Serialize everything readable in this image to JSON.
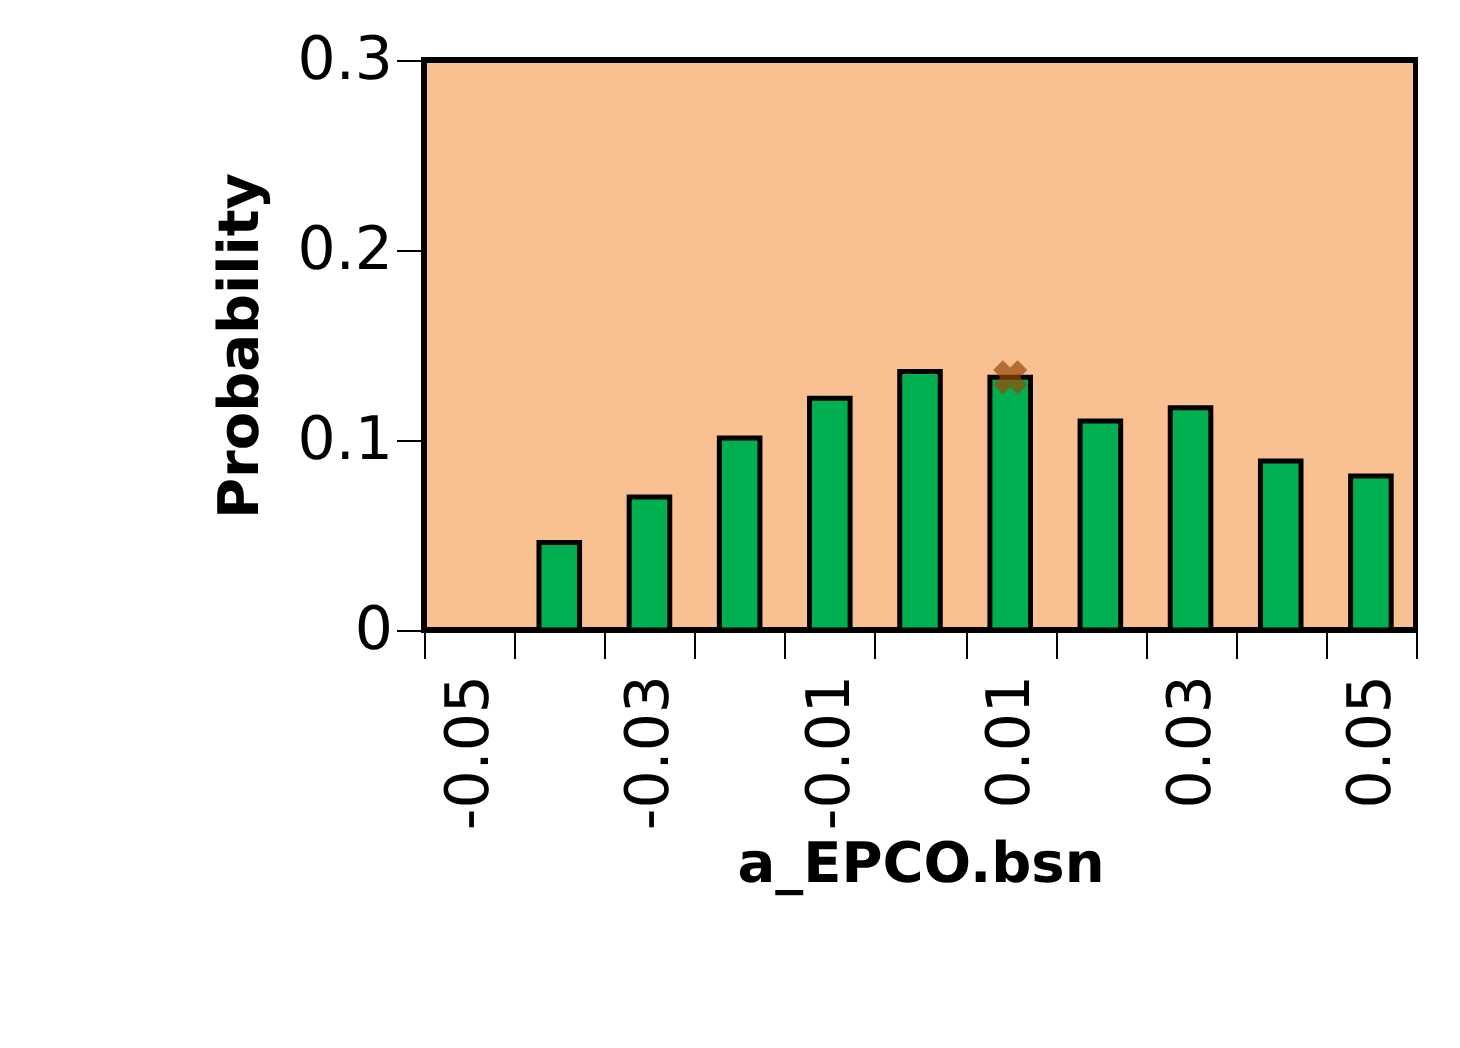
{
  "chart_data": {
    "type": "bar",
    "xlabel": "a_EPCO.bsn",
    "ylabel": "Probability",
    "categories": [
      "-0.05",
      null,
      "-0.03",
      null,
      "-0.01",
      null,
      "0.01",
      null,
      "0.03",
      null,
      "0.05"
    ],
    "series": [
      {
        "color": "#00b050",
        "values": [
          null,
          0.046,
          0.07,
          0.101,
          0.122,
          0.136,
          0.133,
          0.11,
          0.117,
          0.089,
          0.081
        ]
      },
      {
        "type": "scatter",
        "color": "#984807",
        "marker": "cross",
        "x": [
          "0.01"
        ],
        "values": [
          0.133
        ]
      }
    ],
    "ylim": [
      0,
      0.3
    ],
    "yticks": [
      0,
      0.1,
      0.2,
      0.3
    ],
    "grid": false
  }
}
